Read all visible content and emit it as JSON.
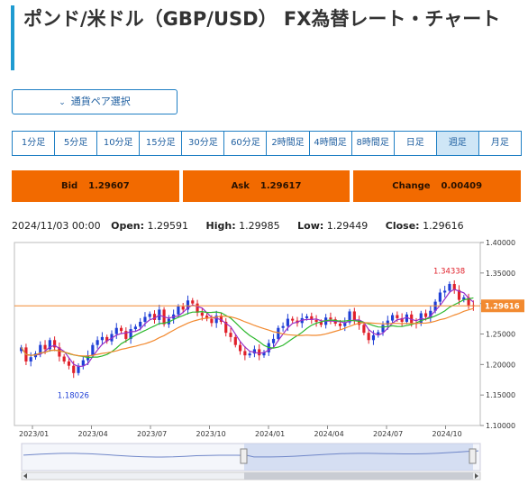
{
  "page": {
    "title": "ポンド/米ドル（GBP/USD） FX為替レート・チャート"
  },
  "pair_select": {
    "label": "通貨ペア選択",
    "icon": "chevron-down-icon"
  },
  "timeframes": [
    {
      "label": "1分足",
      "active": false
    },
    {
      "label": "5分足",
      "active": false
    },
    {
      "label": "10分足",
      "active": false
    },
    {
      "label": "15分足",
      "active": false
    },
    {
      "label": "30分足",
      "active": false
    },
    {
      "label": "60分足",
      "active": false
    },
    {
      "label": "2時間足",
      "active": false
    },
    {
      "label": "4時間足",
      "active": false
    },
    {
      "label": "8時間足",
      "active": false
    },
    {
      "label": "日足",
      "active": false
    },
    {
      "label": "週足",
      "active": true
    },
    {
      "label": "月足",
      "active": false
    }
  ],
  "quote": {
    "bid_label": "Bid",
    "bid": "1.29607",
    "ask_label": "Ask",
    "ask": "1.29617",
    "change_label": "Change",
    "change": "0.00409"
  },
  "ohlc": {
    "date": "2024/11/03 00:00",
    "open_label": "Open:",
    "open": "1.29591",
    "high_label": "High:",
    "high": "1.29985",
    "low_label": "Low:",
    "low": "1.29449",
    "close_label": "Close:",
    "close": "1.29616"
  },
  "colors": {
    "accent": "#1f9bd1",
    "button_border": "#1f7fc4",
    "quote_bg": "#f26a00",
    "up": "#1f3fd6",
    "down": "#e0202a",
    "ma_short": "#9a2fc8",
    "ma_mid": "#2db82d",
    "ma_long": "#f28a30"
  },
  "chart_data": {
    "type": "candlestick",
    "ylim": [
      1.1,
      1.4
    ],
    "y_ticks": [
      "1.40000",
      "1.35000",
      "1.30000",
      "1.25000",
      "1.20000",
      "1.15000",
      "1.10000"
    ],
    "x_ticks": [
      "2023/01",
      "2023/04",
      "2023/07",
      "2023/10",
      "2024/01",
      "2024/04",
      "2024/07",
      "2024/10"
    ],
    "current_price": "1.29616",
    "annotations": [
      {
        "text": "1.34338",
        "value": 1.34338,
        "index": 90,
        "type": "high"
      },
      {
        "text": "1.18026",
        "value": 1.18026,
        "index": 11,
        "type": "low"
      }
    ],
    "closes": [
      1.228,
      1.205,
      1.212,
      1.218,
      1.232,
      1.225,
      1.24,
      1.228,
      1.213,
      1.205,
      1.198,
      1.186,
      1.198,
      1.207,
      1.215,
      1.232,
      1.24,
      1.245,
      1.238,
      1.25,
      1.26,
      1.255,
      1.242,
      1.258,
      1.262,
      1.27,
      1.278,
      1.283,
      1.273,
      1.29,
      1.266,
      1.275,
      1.282,
      1.295,
      1.29,
      1.305,
      1.3,
      1.285,
      1.28,
      1.275,
      1.268,
      1.28,
      1.27,
      1.252,
      1.245,
      1.232,
      1.222,
      1.215,
      1.218,
      1.225,
      1.215,
      1.22,
      1.235,
      1.242,
      1.26,
      1.263,
      1.275,
      1.272,
      1.268,
      1.276,
      1.279,
      1.273,
      1.27,
      1.265,
      1.277,
      1.274,
      1.267,
      1.263,
      1.269,
      1.287,
      1.272,
      1.265,
      1.252,
      1.24,
      1.248,
      1.253,
      1.265,
      1.272,
      1.281,
      1.276,
      1.27,
      1.282,
      1.268,
      1.267,
      1.284,
      1.278,
      1.288,
      1.303,
      1.318,
      1.321,
      1.332,
      1.322,
      1.306,
      1.31,
      1.297,
      1.296
    ]
  }
}
